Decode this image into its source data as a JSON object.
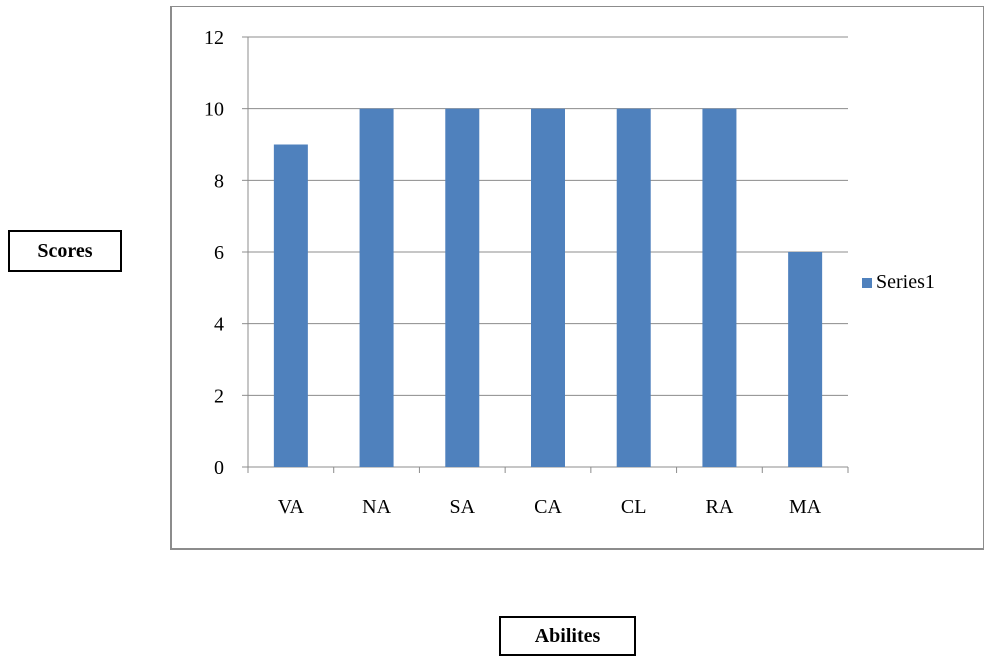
{
  "chart_data": {
    "type": "bar",
    "categories": [
      "VA",
      "NA",
      "SA",
      "CA",
      "CL",
      "RA",
      "MA"
    ],
    "series": [
      {
        "name": "Series1",
        "values": [
          9,
          10,
          10,
          10,
          10,
          10,
          6
        ],
        "color": "#4f81bd"
      }
    ],
    "xlabel": "Abilites",
    "ylabel": "Scores",
    "ylim": [
      0,
      12
    ],
    "yticks": [
      0,
      2,
      4,
      6,
      8,
      10,
      12
    ],
    "grid": "horizontal",
    "legend": "right"
  }
}
